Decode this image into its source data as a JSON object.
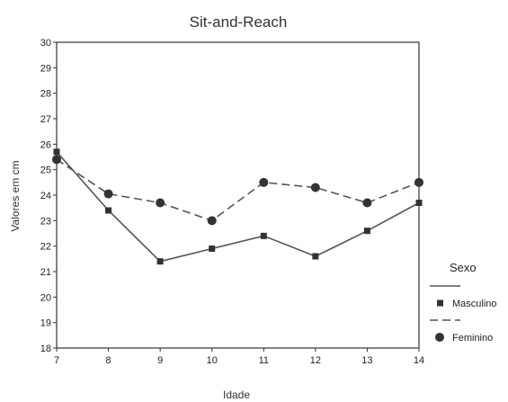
{
  "chart_data": {
    "type": "line",
    "title": "Sit-and-Reach",
    "xlabel": "Idade",
    "ylabel": "Valores em cm",
    "x": [
      7,
      8,
      9,
      10,
      11,
      12,
      13,
      14
    ],
    "xlim": [
      7,
      14
    ],
    "ylim": [
      18,
      30
    ],
    "yticks": [
      18,
      19,
      20,
      21,
      22,
      23,
      24,
      25,
      26,
      27,
      28,
      29,
      30
    ],
    "grid": false,
    "legend": {
      "title": "Sexo",
      "placement": "right"
    },
    "series": [
      {
        "name": "Masculino",
        "values": [
          25.7,
          23.4,
          21.4,
          21.9,
          22.4,
          21.6,
          22.6,
          23.7
        ],
        "line_style": "solid",
        "marker": "square",
        "color": "#555555"
      },
      {
        "name": "Feminino",
        "values": [
          25.4,
          24.05,
          23.7,
          23.0,
          24.5,
          24.3,
          23.7,
          24.5
        ],
        "line_style": "dashed",
        "marker": "circle",
        "color": "#555555"
      }
    ]
  }
}
